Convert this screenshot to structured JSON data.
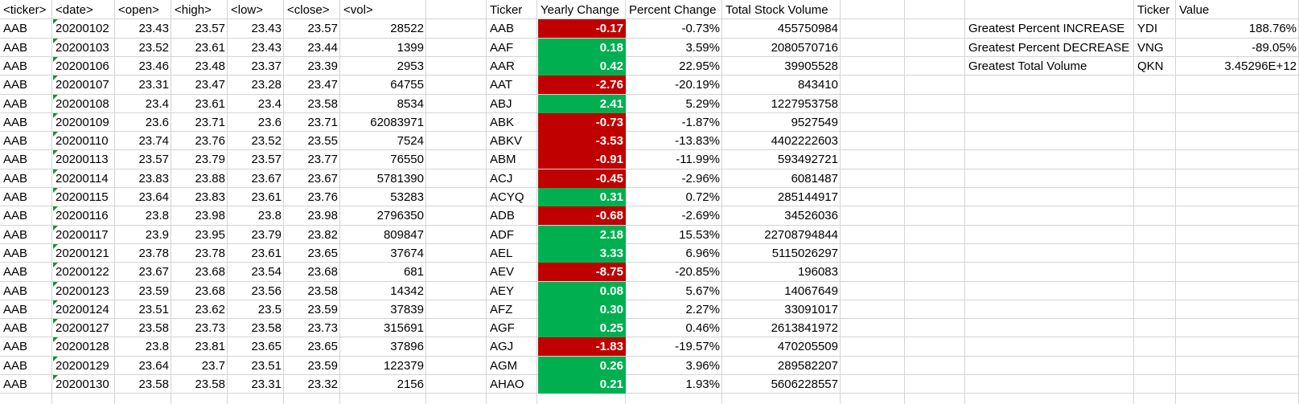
{
  "raw_headers": [
    "<ticker>",
    "<date>",
    "<open>",
    "<high>",
    "<low>",
    "<close>",
    "<vol>"
  ],
  "raw_rows": [
    [
      "AAB",
      "20200102",
      "23.43",
      "23.57",
      "23.43",
      "23.57",
      "28522"
    ],
    [
      "AAB",
      "20200103",
      "23.52",
      "23.61",
      "23.43",
      "23.44",
      "1399"
    ],
    [
      "AAB",
      "20200106",
      "23.46",
      "23.48",
      "23.37",
      "23.39",
      "2953"
    ],
    [
      "AAB",
      "20200107",
      "23.31",
      "23.47",
      "23.28",
      "23.47",
      "64755"
    ],
    [
      "AAB",
      "20200108",
      "23.4",
      "23.61",
      "23.4",
      "23.58",
      "8534"
    ],
    [
      "AAB",
      "20200109",
      "23.6",
      "23.71",
      "23.6",
      "23.71",
      "62083971"
    ],
    [
      "AAB",
      "20200110",
      "23.74",
      "23.76",
      "23.52",
      "23.55",
      "7524"
    ],
    [
      "AAB",
      "20200113",
      "23.57",
      "23.79",
      "23.57",
      "23.77",
      "76550"
    ],
    [
      "AAB",
      "20200114",
      "23.83",
      "23.88",
      "23.67",
      "23.67",
      "5781390"
    ],
    [
      "AAB",
      "20200115",
      "23.64",
      "23.83",
      "23.61",
      "23.76",
      "53283"
    ],
    [
      "AAB",
      "20200116",
      "23.8",
      "23.98",
      "23.8",
      "23.98",
      "2796350"
    ],
    [
      "AAB",
      "20200117",
      "23.9",
      "23.95",
      "23.79",
      "23.82",
      "809847"
    ],
    [
      "AAB",
      "20200121",
      "23.78",
      "23.78",
      "23.61",
      "23.65",
      "37674"
    ],
    [
      "AAB",
      "20200122",
      "23.67",
      "23.68",
      "23.54",
      "23.68",
      "681"
    ],
    [
      "AAB",
      "20200123",
      "23.59",
      "23.68",
      "23.56",
      "23.58",
      "14342"
    ],
    [
      "AAB",
      "20200124",
      "23.51",
      "23.62",
      "23.5",
      "23.59",
      "37839"
    ],
    [
      "AAB",
      "20200127",
      "23.58",
      "23.73",
      "23.58",
      "23.73",
      "315691"
    ],
    [
      "AAB",
      "20200128",
      "23.8",
      "23.81",
      "23.65",
      "23.65",
      "37896"
    ],
    [
      "AAB",
      "20200129",
      "23.64",
      "23.7",
      "23.51",
      "23.59",
      "122379"
    ],
    [
      "AAB",
      "20200130",
      "23.58",
      "23.58",
      "23.31",
      "23.32",
      "2156"
    ]
  ],
  "summary_headers": [
    "Ticker",
    "Yearly Change",
    "Percent Change",
    "Total Stock Volume"
  ],
  "summary_rows": [
    [
      "AAB",
      "-0.17",
      "-0.73%",
      "455750984"
    ],
    [
      "AAF",
      "0.18",
      "3.59%",
      "2080570716"
    ],
    [
      "AAR",
      "0.42",
      "22.95%",
      "39905528"
    ],
    [
      "AAT",
      "-2.76",
      "-20.19%",
      "843410"
    ],
    [
      "ABJ",
      "2.41",
      "5.29%",
      "1227953758"
    ],
    [
      "ABK",
      "-0.73",
      "-1.87%",
      "9527549"
    ],
    [
      "ABKV",
      "-3.53",
      "-13.83%",
      "4402222603"
    ],
    [
      "ABM",
      "-0.91",
      "-11.99%",
      "593492721"
    ],
    [
      "ACJ",
      "-0.45",
      "-2.96%",
      "6081487"
    ],
    [
      "ACYQ",
      "0.31",
      "0.72%",
      "285144917"
    ],
    [
      "ADB",
      "-0.68",
      "-2.69%",
      "34526036"
    ],
    [
      "ADF",
      "2.18",
      "15.53%",
      "22708794844"
    ],
    [
      "AEL",
      "3.33",
      "6.96%",
      "5115026297"
    ],
    [
      "AEV",
      "-8.75",
      "-20.85%",
      "196083"
    ],
    [
      "AEY",
      "0.08",
      "5.67%",
      "14067649"
    ],
    [
      "AFZ",
      "0.30",
      "2.27%",
      "33091017"
    ],
    [
      "AGF",
      "0.25",
      "0.46%",
      "2613841972"
    ],
    [
      "AGJ",
      "-1.83",
      "-19.57%",
      "470205509"
    ],
    [
      "AGM",
      "0.26",
      "3.96%",
      "289582207"
    ],
    [
      "AHAO",
      "0.21",
      "1.93%",
      "5606228557"
    ]
  ],
  "greatest_headers": [
    "Ticker",
    "Value"
  ],
  "greatest_rows": [
    [
      "Greatest Percent INCREASE",
      "YDI",
      "188.76%"
    ],
    [
      "Greatest Percent DECREASE",
      "VNG",
      "-89.05%"
    ],
    [
      "Greatest Total Volume",
      "QKN",
      "3.45296E+12"
    ]
  ],
  "colors": {
    "negative": "#c00000",
    "positive": "#00b050",
    "gridline": "#d4d4d4"
  }
}
